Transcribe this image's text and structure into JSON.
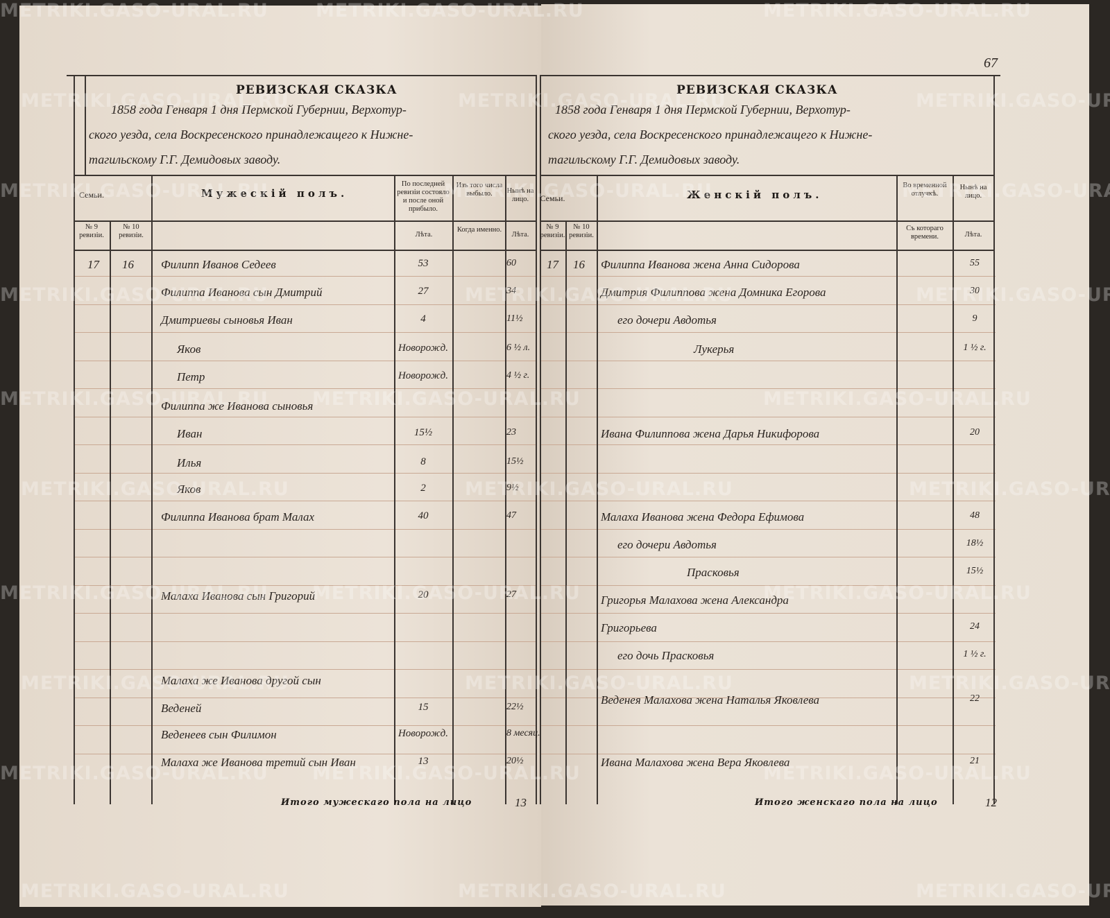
{
  "page_number": "67",
  "watermark": "METRIKI.GASO-URAL.RU",
  "left": {
    "title": "РЕВИЗСКАЯ СКАЗКА",
    "heading_lines": [
      "1858 года Генваря 1 дня Пермской Губернии, Верхотур-",
      "ского уезда, села Воскресенского принадлежащего к Нижне-",
      "тагильскому Г.Г. Демидовых заводу."
    ],
    "col_families": "Семьи.",
    "col_sex": "Мужескій полъ.",
    "col_last_revision": "По последней ревизіи состояло и после оной прибыло.",
    "col_left": "Изъ того числа выбыло.",
    "col_now": "Нынѣ на лицо.",
    "sub_rev9": "№ 9 ревизіи.",
    "sub_rev10": "№ 10 ревизіи.",
    "sub_years": "Лѣта.",
    "sub_when": "Когда именно.",
    "sub_years2": "Лѣта.",
    "rows": [
      {
        "n9": "17",
        "n10": "16",
        "name": "Филипп Иванов Седеев",
        "prev": "53",
        "left": "",
        "now": "60"
      },
      {
        "n9": "",
        "n10": "",
        "name": "Филиппа Иванова сын Дмитрий",
        "prev": "27",
        "left": "",
        "now": "34"
      },
      {
        "n9": "",
        "n10": "",
        "name": "Дмитриевы сыновья Иван",
        "prev": "4",
        "left": "",
        "now": "11½"
      },
      {
        "n9": "",
        "n10": "",
        "name": "Яков",
        "prev": "Новорожд.",
        "left": "",
        "now": "6 ½ л."
      },
      {
        "n9": "",
        "n10": "",
        "name": "Петр",
        "prev": "Новорожд.",
        "left": "",
        "now": "4 ½ г."
      },
      {
        "n9": "",
        "n10": "",
        "name": "Филиппа же Иванова сыновья",
        "prev": "",
        "left": "",
        "now": ""
      },
      {
        "n9": "",
        "n10": "",
        "name": "Иван",
        "prev": "15½",
        "left": "",
        "now": "23"
      },
      {
        "n9": "",
        "n10": "",
        "name": "Илья",
        "prev": "8",
        "left": "",
        "now": "15½"
      },
      {
        "n9": "",
        "n10": "",
        "name": "Яков",
        "prev": "2",
        "left": "",
        "now": "9½"
      },
      {
        "n9": "",
        "n10": "",
        "name": "Филиппа Иванова брат Малах",
        "prev": "40",
        "left": "",
        "now": "47"
      },
      {
        "n9": "",
        "n10": "",
        "name": "Малаха Иванова сын Григорий",
        "prev": "20",
        "left": "",
        "now": "27"
      },
      {
        "n9": "",
        "n10": "",
        "name": "Малаха же Иванова другой сын",
        "prev": "",
        "left": "",
        "now": ""
      },
      {
        "n9": "",
        "n10": "",
        "name": "Веденей",
        "prev": "15",
        "left": "",
        "now": "22½"
      },
      {
        "n9": "",
        "n10": "",
        "name": "Веденеев сын Филимон",
        "prev": "Новорожд.",
        "left": "",
        "now": "8 месяц."
      },
      {
        "n9": "",
        "n10": "",
        "name": "Малаха же Иванова третий сын Иван",
        "prev": "13",
        "left": "",
        "now": "20½"
      }
    ],
    "total_label": "Итого мужескаго пола на лицо",
    "total_value": "13"
  },
  "right": {
    "title": "РЕВИЗСКАЯ СКАЗКА",
    "heading_lines": [
      "1858 года Генваря 1 дня Пермской Губернии, Верхотур-",
      "ского уезда, села Воскресенского принадлежащего к Нижне-",
      "тагильскому Г.Г. Демидовых заводу."
    ],
    "col_families": "Семьи.",
    "col_sex": "Женскій полъ.",
    "col_absence": "Во временной отлучкѣ.",
    "col_now": "Нынѣ на лицо.",
    "sub_rev9": "№ 9 ревизіи.",
    "sub_rev10": "№ 10 ревизіи.",
    "sub_since": "Съ котораго времени.",
    "sub_years": "Лѣта.",
    "rows": [
      {
        "n9": "17",
        "n10": "16",
        "name": "Филиппа Иванова жена Анна Сидорова",
        "absence": "",
        "now": "55"
      },
      {
        "n9": "",
        "n10": "",
        "name": "Дмитрия Филиппова жена Домника Егорова",
        "absence": "",
        "now": "30"
      },
      {
        "n9": "",
        "n10": "",
        "name": "его дочери Авдотья",
        "absence": "",
        "now": "9"
      },
      {
        "n9": "",
        "n10": "",
        "name": "Лукерья",
        "absence": "",
        "now": "1 ½ г."
      },
      {
        "n9": "",
        "n10": "",
        "name": "Ивана Филиппова жена Дарья Никифорова",
        "absence": "",
        "now": "20"
      },
      {
        "n9": "",
        "n10": "",
        "name": "Малаха Иванова жена Федора Ефимова",
        "absence": "",
        "now": "48"
      },
      {
        "n9": "",
        "n10": "",
        "name": "его дочери Авдотья",
        "absence": "",
        "now": "18½"
      },
      {
        "n9": "",
        "n10": "",
        "name": "Прасковья",
        "absence": "",
        "now": "15½"
      },
      {
        "n9": "",
        "n10": "",
        "name": "Григорья Малахова жена Александра",
        "absence": "",
        "now": ""
      },
      {
        "n9": "",
        "n10": "",
        "name": "Григорьева",
        "absence": "",
        "now": "24"
      },
      {
        "n9": "",
        "n10": "",
        "name": "его дочь Прасковья",
        "absence": "",
        "now": "1 ½ г."
      },
      {
        "n9": "",
        "n10": "",
        "name": "Веденея Малахова жена Наталья Яковлева",
        "absence": "",
        "now": "22"
      },
      {
        "n9": "",
        "n10": "",
        "name": "Ивана Малахова жена Вера Яковлева",
        "absence": "",
        "now": "21"
      }
    ],
    "total_label": "Итого женскаго пола на лицо",
    "total_value": "12"
  }
}
